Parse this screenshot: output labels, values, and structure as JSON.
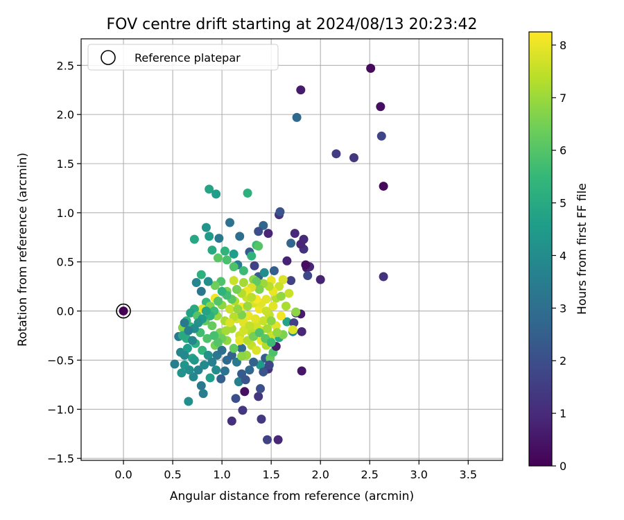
{
  "chart_data": {
    "type": "scatter",
    "title": "FOV centre drift starting at 2024/08/13 20:23:42",
    "xlabel": "Angular distance from reference (arcmin)",
    "ylabel": "Rotation from reference (arcmin)",
    "xlim": [
      -0.43,
      3.85
    ],
    "ylim": [
      -1.52,
      2.77
    ],
    "xticks": [
      0.0,
      0.5,
      1.0,
      1.5,
      2.0,
      2.5,
      3.0,
      3.5
    ],
    "yticks": [
      -1.5,
      -1.0,
      -0.5,
      0.0,
      0.5,
      1.0,
      1.5,
      2.0,
      2.5
    ],
    "xtick_labels": [
      "0.0",
      "0.5",
      "1.0",
      "1.5",
      "2.0",
      "2.5",
      "3.0",
      "3.5"
    ],
    "ytick_labels": [
      "−1.5",
      "−1.0",
      "−0.5",
      "0.0",
      "0.5",
      "1.0",
      "1.5",
      "2.0",
      "2.5"
    ],
    "grid": true,
    "legend": {
      "placement": "top-left",
      "entries": [
        "Reference platepar"
      ]
    },
    "colorbar": {
      "label": "Hours from first FF file",
      "range": [
        0,
        8.25
      ],
      "ticks": [
        0,
        1,
        2,
        3,
        4,
        5,
        6,
        7,
        8
      ],
      "tick_labels": [
        "0",
        "1",
        "2",
        "3",
        "4",
        "5",
        "6",
        "7",
        "8"
      ],
      "colormap": "viridis"
    },
    "reference_point": {
      "x": 0.0,
      "y": 0.0,
      "hours": 0.0
    },
    "colormap_stops": [
      "#440154",
      "#482878",
      "#3e4989",
      "#31688e",
      "#26828e",
      "#1f9e89",
      "#35b779",
      "#6ece58",
      "#b5de2b",
      "#fde725"
    ],
    "series": [
      {
        "points": [
          [
            2.51,
            2.47,
            0.2
          ],
          [
            2.61,
            2.08,
            0.3
          ],
          [
            1.8,
            2.25,
            0.6
          ],
          [
            2.62,
            1.78,
            1.7
          ],
          [
            1.76,
            1.97,
            2.8
          ],
          [
            2.16,
            1.6,
            1.5
          ],
          [
            2.34,
            1.56,
            1.3
          ],
          [
            2.64,
            1.27,
            0.2
          ],
          [
            2.64,
            0.35,
            1.2
          ],
          [
            2.0,
            0.32,
            0.8
          ],
          [
            1.86,
            0.44,
            0.6
          ],
          [
            1.89,
            0.45,
            0.9
          ],
          [
            1.87,
            0.36,
            1.8
          ],
          [
            1.85,
            0.47,
            0.3
          ],
          [
            1.83,
            0.63,
            1.2
          ],
          [
            1.83,
            0.73,
            1.0
          ],
          [
            1.8,
            0.68,
            0.9
          ],
          [
            1.74,
            0.79,
            1.0
          ],
          [
            1.7,
            0.69,
            2.7
          ],
          [
            1.7,
            0.31,
            1.6
          ],
          [
            1.66,
            0.51,
            0.8
          ],
          [
            1.58,
            0.98,
            1.2
          ],
          [
            1.59,
            1.01,
            2.2
          ],
          [
            1.53,
            0.41,
            2.5
          ],
          [
            1.47,
            0.79,
            0.9
          ],
          [
            1.42,
            0.87,
            2.7
          ],
          [
            1.37,
            0.81,
            2.0
          ],
          [
            1.33,
            0.46,
            1.6
          ],
          [
            1.37,
            0.35,
            2.5
          ],
          [
            1.28,
            0.6,
            2.3
          ],
          [
            1.18,
            0.76,
            3.0
          ],
          [
            1.08,
            0.9,
            3.1
          ],
          [
            1.26,
            1.2,
            5.2
          ],
          [
            0.87,
            1.24,
            4.8
          ],
          [
            0.94,
            1.19,
            4.6
          ],
          [
            0.84,
            0.85,
            4.3
          ],
          [
            0.72,
            0.73,
            4.9
          ],
          [
            0.87,
            0.76,
            4.5
          ],
          [
            0.97,
            0.74,
            3.3
          ],
          [
            0.9,
            0.62,
            5.0
          ],
          [
            0.96,
            0.54,
            6.1
          ],
          [
            1.03,
            0.61,
            5.3
          ],
          [
            1.05,
            0.52,
            5.8
          ],
          [
            1.12,
            0.58,
            4.6
          ],
          [
            1.16,
            0.47,
            3.5
          ],
          [
            1.12,
            0.45,
            5.9
          ],
          [
            1.3,
            0.56,
            5.3
          ],
          [
            1.35,
            0.67,
            5.6
          ],
          [
            1.37,
            0.66,
            6.0
          ],
          [
            1.32,
            0.32,
            6.8
          ],
          [
            1.43,
            0.39,
            4.0
          ],
          [
            1.22,
            0.41,
            5.6
          ],
          [
            1.22,
            0.29,
            7.1
          ],
          [
            1.12,
            0.31,
            7.6
          ],
          [
            1.05,
            0.2,
            6.6
          ],
          [
            0.99,
            0.3,
            5.9
          ],
          [
            0.93,
            0.26,
            6.4
          ],
          [
            0.86,
            0.3,
            4.1
          ],
          [
            0.79,
            0.37,
            5.2
          ],
          [
            0.74,
            0.29,
            3.8
          ],
          [
            0.79,
            0.2,
            3.2
          ],
          [
            0.84,
            0.09,
            5.5
          ],
          [
            0.93,
            0.13,
            8.1
          ],
          [
            0.8,
            0.02,
            7.9
          ],
          [
            0.72,
            0.02,
            5.0
          ],
          [
            0.68,
            -0.02,
            4.7
          ],
          [
            0.64,
            -0.1,
            5.3
          ],
          [
            0.6,
            -0.17,
            6.7
          ],
          [
            0.64,
            -0.28,
            5.1
          ],
          [
            0.56,
            -0.26,
            3.4
          ],
          [
            0.58,
            -0.42,
            3.8
          ],
          [
            0.52,
            -0.54,
            3.5
          ],
          [
            0.59,
            -0.63,
            4.2
          ],
          [
            0.66,
            -0.92,
            4.1
          ],
          [
            0.71,
            -0.67,
            3.8
          ],
          [
            0.79,
            -0.76,
            3.3
          ],
          [
            0.81,
            -0.84,
            3.5
          ],
          [
            0.88,
            -0.68,
            4.6
          ],
          [
            0.94,
            -0.6,
            4.0
          ],
          [
            0.99,
            -0.69,
            2.5
          ],
          [
            1.03,
            -0.61,
            3.1
          ],
          [
            1.14,
            -0.89,
            2.0
          ],
          [
            1.17,
            -0.72,
            3.6
          ],
          [
            1.2,
            -0.64,
            2.4
          ],
          [
            1.24,
            -0.7,
            2.2
          ],
          [
            1.21,
            -1.01,
            1.3
          ],
          [
            1.23,
            -0.82,
            0.3
          ],
          [
            1.1,
            -1.12,
            1.1
          ],
          [
            1.37,
            -0.87,
            1.3
          ],
          [
            1.39,
            -0.79,
            2.0
          ],
          [
            1.4,
            -1.1,
            1.4
          ],
          [
            1.46,
            -1.31,
            1.6
          ],
          [
            1.57,
            -1.31,
            0.9
          ],
          [
            1.39,
            -0.55,
            4.5
          ],
          [
            1.47,
            -0.59,
            1.2
          ],
          [
            1.44,
            -0.48,
            2.4
          ],
          [
            1.49,
            -0.48,
            6.3
          ],
          [
            1.52,
            -0.42,
            5.9
          ],
          [
            1.55,
            -0.36,
            0.6
          ],
          [
            1.58,
            -0.27,
            5.0
          ],
          [
            1.62,
            -0.24,
            6.6
          ],
          [
            1.66,
            -0.11,
            4.8
          ],
          [
            1.72,
            -0.21,
            3.7
          ],
          [
            1.73,
            -0.12,
            1.6
          ],
          [
            1.75,
            -0.02,
            1.4
          ],
          [
            1.8,
            -0.03,
            0.6
          ],
          [
            1.81,
            -0.21,
            0.9
          ],
          [
            1.81,
            -0.61,
            0.5
          ],
          [
            1.72,
            -0.19,
            7.8
          ],
          [
            1.75,
            -0.01,
            6.8
          ],
          [
            1.68,
            0.18,
            7.6
          ],
          [
            1.62,
            0.32,
            7.8
          ],
          [
            1.55,
            0.13,
            7.3
          ],
          [
            1.5,
            0.31,
            8.0
          ],
          [
            1.52,
            0.05,
            7.9
          ],
          [
            1.48,
            -0.04,
            7.5
          ],
          [
            1.45,
            0.12,
            7.9
          ],
          [
            1.42,
            -0.1,
            7.6
          ],
          [
            1.38,
            0.02,
            8.1
          ],
          [
            1.35,
            -0.15,
            7.7
          ],
          [
            1.32,
            0.08,
            7.8
          ],
          [
            1.3,
            -0.22,
            7.4
          ],
          [
            1.27,
            -0.05,
            8.0
          ],
          [
            1.25,
            0.14,
            7.6
          ],
          [
            1.22,
            -0.12,
            7.9
          ],
          [
            1.2,
            0.04,
            8.2
          ],
          [
            1.18,
            -0.25,
            7.6
          ],
          [
            1.15,
            -0.08,
            7.8
          ],
          [
            1.13,
            0.1,
            7.3
          ],
          [
            1.1,
            -0.18,
            7.1
          ],
          [
            1.08,
            0.02,
            7.6
          ],
          [
            1.05,
            -0.3,
            6.9
          ],
          [
            1.03,
            -0.1,
            7.2
          ],
          [
            1.0,
            0.06,
            6.8
          ],
          [
            0.98,
            -0.22,
            6.6
          ],
          [
            0.95,
            -0.05,
            7.0
          ],
          [
            0.93,
            -0.35,
            6.5
          ],
          [
            0.9,
            -0.15,
            6.3
          ],
          [
            0.88,
            0.05,
            6.7
          ],
          [
            0.85,
            -0.28,
            5.9
          ],
          [
            0.83,
            -0.1,
            6.2
          ],
          [
            0.8,
            -0.4,
            5.4
          ],
          [
            0.78,
            -0.22,
            5.7
          ],
          [
            0.75,
            -0.05,
            6.0
          ],
          [
            0.73,
            -0.33,
            5.2
          ],
          [
            0.7,
            -0.48,
            4.8
          ],
          [
            0.68,
            -0.16,
            5.5
          ],
          [
            0.65,
            -0.38,
            4.6
          ],
          [
            0.62,
            -0.55,
            4.3
          ],
          [
            0.6,
            -0.25,
            5.0
          ],
          [
            0.62,
            -0.45,
            3.9
          ],
          [
            0.67,
            -0.6,
            4.1
          ],
          [
            0.72,
            -0.5,
            4.4
          ],
          [
            0.76,
            -0.6,
            3.7
          ],
          [
            0.82,
            -0.55,
            3.9
          ],
          [
            0.86,
            -0.45,
            4.2
          ],
          [
            0.9,
            -0.52,
            3.6
          ],
          [
            0.95,
            -0.45,
            3.3
          ],
          [
            1.0,
            -0.4,
            3.0
          ],
          [
            1.05,
            -0.5,
            2.8
          ],
          [
            1.1,
            -0.45,
            2.6
          ],
          [
            1.15,
            -0.52,
            3.4
          ],
          [
            1.2,
            -0.38,
            2.9
          ],
          [
            1.25,
            -0.45,
            7.0
          ],
          [
            1.3,
            -0.35,
            7.5
          ],
          [
            1.35,
            -0.4,
            7.8
          ],
          [
            1.4,
            -0.3,
            8.0
          ],
          [
            1.45,
            -0.35,
            7.3
          ],
          [
            1.5,
            -0.25,
            7.6
          ],
          [
            1.55,
            -0.15,
            7.9
          ],
          [
            1.6,
            -0.05,
            8.1
          ],
          [
            1.65,
            0.05,
            7.2
          ],
          [
            1.6,
            0.15,
            6.9
          ],
          [
            1.58,
            0.25,
            7.6
          ],
          [
            1.52,
            0.2,
            8.0
          ],
          [
            1.48,
            0.25,
            7.4
          ],
          [
            1.42,
            0.28,
            7.0
          ],
          [
            1.38,
            0.22,
            6.6
          ],
          [
            1.35,
            0.3,
            6.2
          ],
          [
            1.3,
            0.24,
            7.8
          ],
          [
            1.25,
            0.2,
            8.1
          ],
          [
            1.2,
            0.18,
            7.3
          ],
          [
            1.15,
            0.22,
            6.5
          ],
          [
            1.1,
            0.12,
            6.1
          ],
          [
            1.05,
            0.16,
            5.7
          ],
          [
            1.0,
            0.2,
            5.3
          ],
          [
            0.96,
            0.1,
            6.0
          ],
          [
            0.92,
            0.0,
            5.6
          ],
          [
            0.88,
            -0.05,
            5.2
          ],
          [
            0.84,
            0.0,
            4.8
          ],
          [
            0.8,
            -0.08,
            4.5
          ],
          [
            0.76,
            -0.12,
            4.2
          ],
          [
            0.72,
            -0.18,
            4.0
          ],
          [
            0.7,
            -0.3,
            3.8
          ],
          [
            0.66,
            -0.2,
            3.5
          ],
          [
            0.62,
            -0.12,
            3.3
          ],
          [
            1.28,
            -0.6,
            2.8
          ],
          [
            1.32,
            -0.52,
            2.6
          ],
          [
            1.42,
            -0.62,
            2.2
          ],
          [
            1.48,
            -0.55,
            1.8
          ],
          [
            1.18,
            -0.3,
            7.9
          ],
          [
            1.22,
            -0.2,
            7.7
          ],
          [
            1.28,
            -0.15,
            7.5
          ],
          [
            1.34,
            -0.08,
            7.9
          ],
          [
            1.4,
            -0.2,
            7.7
          ],
          [
            1.46,
            -0.18,
            7.1
          ],
          [
            1.5,
            -0.1,
            6.8
          ],
          [
            1.45,
            0.0,
            7.6
          ],
          [
            1.4,
            0.08,
            7.9
          ],
          [
            1.35,
            0.12,
            8.2
          ],
          [
            1.3,
            0.14,
            7.4
          ],
          [
            1.26,
            0.05,
            7.0
          ],
          [
            1.2,
            -0.04,
            6.6
          ],
          [
            1.16,
            0.02,
            6.9
          ],
          [
            1.12,
            -0.06,
            7.4
          ],
          [
            1.08,
            -0.12,
            7.8
          ],
          [
            1.04,
            -0.2,
            7.1
          ],
          [
            1.0,
            -0.28,
            6.4
          ],
          [
            0.96,
            -0.32,
            6.0
          ],
          [
            0.92,
            -0.25,
            5.8
          ],
          [
            1.12,
            -0.38,
            6.2
          ],
          [
            1.2,
            -0.46,
            6.8
          ],
          [
            1.26,
            -0.3,
            7.3
          ],
          [
            1.32,
            -0.26,
            6.5
          ],
          [
            1.38,
            -0.22,
            5.9
          ],
          [
            1.44,
            -0.28,
            6.1
          ],
          [
            1.5,
            -0.32,
            5.6
          ],
          [
            1.56,
            -0.22,
            6.9
          ]
        ]
      }
    ]
  }
}
